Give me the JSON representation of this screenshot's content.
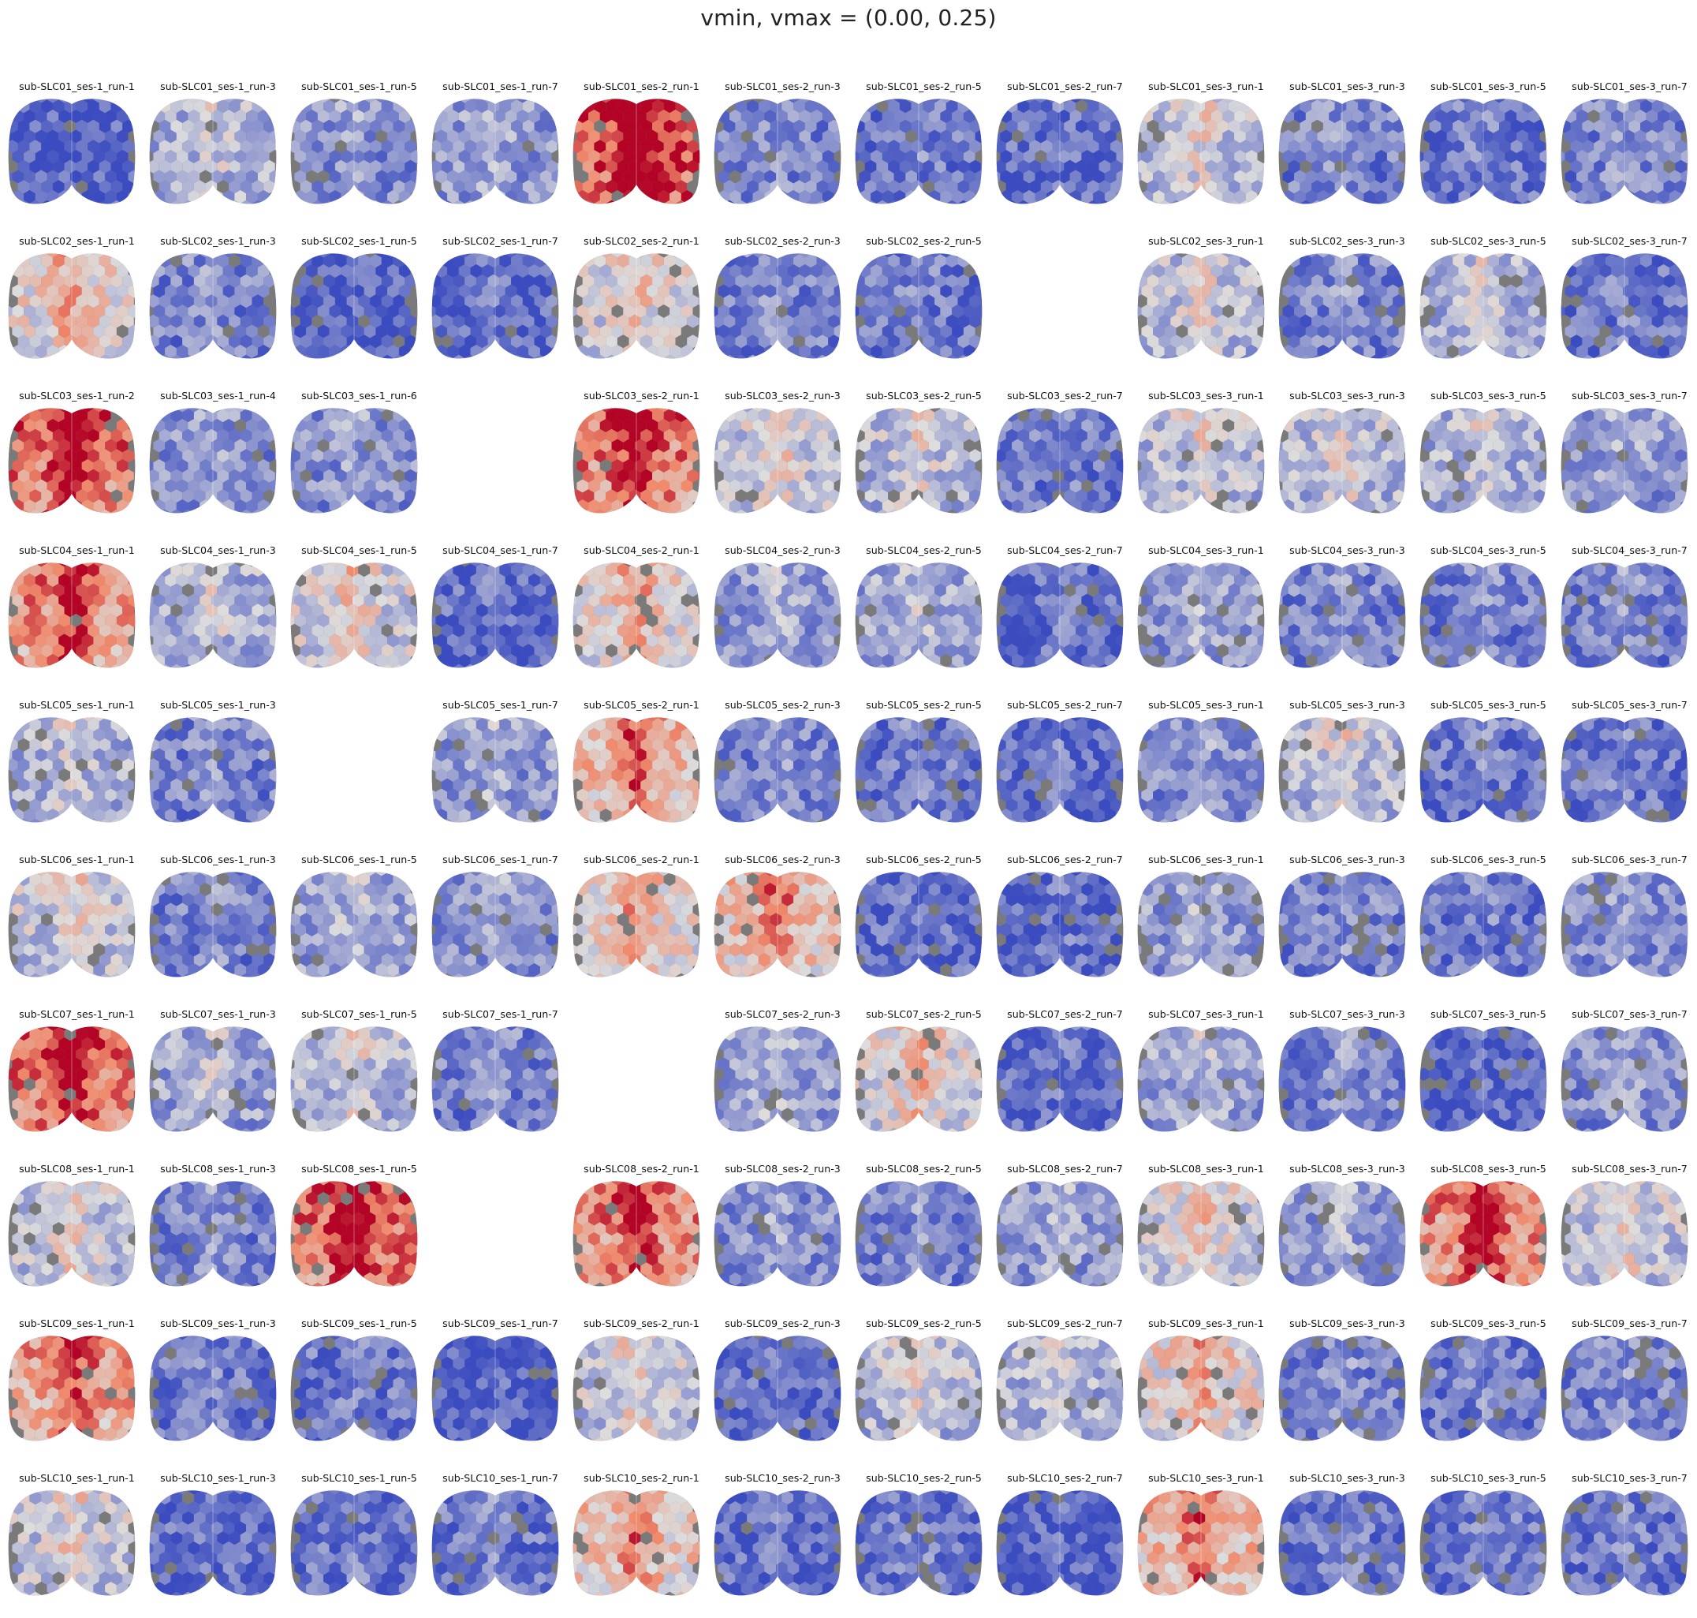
{
  "title": "vmin, vmax = (0.00, 0.25)",
  "colormap": {
    "name": "coolwarm",
    "low": "#3b4cc0",
    "mid": "#dddddd",
    "high": "#b40426",
    "missing_color": "#7a7a7a",
    "vmin": 0.0,
    "vmax": 0.25
  },
  "subjects": [
    "SLC01",
    "SLC02",
    "SLC03",
    "SLC04",
    "SLC05",
    "SLC06",
    "SLC07",
    "SLC08",
    "SLC09",
    "SLC10"
  ],
  "panels": [
    [
      "sub-SLC01_ses-1_run-1",
      "sub-SLC01_ses-1_run-3",
      "sub-SLC01_ses-1_run-5",
      "sub-SLC01_ses-1_run-7",
      "sub-SLC01_ses-2_run-1",
      "sub-SLC01_ses-2_run-3",
      "sub-SLC01_ses-2_run-5",
      "sub-SLC01_ses-2_run-7",
      "sub-SLC01_ses-3_run-1",
      "sub-SLC01_ses-3_run-3",
      "sub-SLC01_ses-3_run-5",
      "sub-SLC01_ses-3_run-7"
    ],
    [
      "sub-SLC02_ses-1_run-1",
      "sub-SLC02_ses-1_run-3",
      "sub-SLC02_ses-1_run-5",
      "sub-SLC02_ses-1_run-7",
      "sub-SLC02_ses-2_run-1",
      "sub-SLC02_ses-2_run-3",
      "sub-SLC02_ses-2_run-5",
      null,
      "sub-SLC02_ses-3_run-1",
      "sub-SLC02_ses-3_run-3",
      "sub-SLC02_ses-3_run-5",
      "sub-SLC02_ses-3_run-7"
    ],
    [
      "sub-SLC03_ses-1_run-2",
      "sub-SLC03_ses-1_run-4",
      "sub-SLC03_ses-1_run-6",
      null,
      "sub-SLC03_ses-2_run-1",
      "sub-SLC03_ses-2_run-3",
      "sub-SLC03_ses-2_run-5",
      "sub-SLC03_ses-2_run-7",
      "sub-SLC03_ses-3_run-1",
      "sub-SLC03_ses-3_run-3",
      "sub-SLC03_ses-3_run-5",
      "sub-SLC03_ses-3_run-7"
    ],
    [
      "sub-SLC04_ses-1_run-1",
      "sub-SLC04_ses-1_run-3",
      "sub-SLC04_ses-1_run-5",
      "sub-SLC04_ses-1_run-7",
      "sub-SLC04_ses-2_run-1",
      "sub-SLC04_ses-2_run-3",
      "sub-SLC04_ses-2_run-5",
      "sub-SLC04_ses-2_run-7",
      "sub-SLC04_ses-3_run-1",
      "sub-SLC04_ses-3_run-3",
      "sub-SLC04_ses-3_run-5",
      "sub-SLC04_ses-3_run-7"
    ],
    [
      "sub-SLC05_ses-1_run-1",
      "sub-SLC05_ses-1_run-3",
      null,
      "sub-SLC05_ses-1_run-7",
      "sub-SLC05_ses-2_run-1",
      "sub-SLC05_ses-2_run-3",
      "sub-SLC05_ses-2_run-5",
      "sub-SLC05_ses-2_run-7",
      "sub-SLC05_ses-3_run-1",
      "sub-SLC05_ses-3_run-3",
      "sub-SLC05_ses-3_run-5",
      "sub-SLC05_ses-3_run-7"
    ],
    [
      "sub-SLC06_ses-1_run-1",
      "sub-SLC06_ses-1_run-3",
      "sub-SLC06_ses-1_run-5",
      "sub-SLC06_ses-1_run-7",
      "sub-SLC06_ses-2_run-1",
      "sub-SLC06_ses-2_run-3",
      "sub-SLC06_ses-2_run-5",
      "sub-SLC06_ses-2_run-7",
      "sub-SLC06_ses-3_run-1",
      "sub-SLC06_ses-3_run-3",
      "sub-SLC06_ses-3_run-5",
      "sub-SLC06_ses-3_run-7"
    ],
    [
      "sub-SLC07_ses-1_run-1",
      "sub-SLC07_ses-1_run-3",
      "sub-SLC07_ses-1_run-5",
      "sub-SLC07_ses-1_run-7",
      null,
      "sub-SLC07_ses-2_run-3",
      "sub-SLC07_ses-2_run-5",
      "sub-SLC07_ses-2_run-7",
      "sub-SLC07_ses-3_run-1",
      "sub-SLC07_ses-3_run-3",
      "sub-SLC07_ses-3_run-5",
      "sub-SLC07_ses-3_run-7"
    ],
    [
      "sub-SLC08_ses-1_run-1",
      "sub-SLC08_ses-1_run-3",
      "sub-SLC08_ses-1_run-5",
      null,
      "sub-SLC08_ses-2_run-1",
      "sub-SLC08_ses-2_run-3",
      "sub-SLC08_ses-2_run-5",
      "sub-SLC08_ses-2_run-7",
      "sub-SLC08_ses-3_run-1",
      "sub-SLC08_ses-3_run-3",
      "sub-SLC08_ses-3_run-5",
      "sub-SLC08_ses-3_run-7"
    ],
    [
      "sub-SLC09_ses-1_run-1",
      "sub-SLC09_ses-1_run-3",
      "sub-SLC09_ses-1_run-5",
      "sub-SLC09_ses-1_run-7",
      "sub-SLC09_ses-2_run-1",
      "sub-SLC09_ses-2_run-3",
      "sub-SLC09_ses-2_run-5",
      "sub-SLC09_ses-2_run-7",
      "sub-SLC09_ses-3_run-1",
      "sub-SLC09_ses-3_run-3",
      "sub-SLC09_ses-3_run-5",
      "sub-SLC09_ses-3_run-7"
    ],
    [
      "sub-SLC10_ses-1_run-1",
      "sub-SLC10_ses-1_run-3",
      "sub-SLC10_ses-1_run-5",
      "sub-SLC10_ses-1_run-7",
      "sub-SLC10_ses-2_run-1",
      "sub-SLC10_ses-2_run-3",
      "sub-SLC10_ses-2_run-5",
      "sub-SLC10_ses-2_run-7",
      "sub-SLC10_ses-3_run-1",
      "sub-SLC10_ses-3_run-3",
      "sub-SLC10_ses-3_run-5",
      "sub-SLC10_ses-3_run-7"
    ]
  ],
  "approx_activation_level": [
    [
      0.02,
      0.09,
      0.06,
      0.07,
      0.24,
      0.05,
      0.04,
      0.03,
      0.1,
      0.05,
      0.04,
      0.05
    ],
    [
      0.14,
      0.05,
      0.02,
      0.03,
      0.12,
      0.05,
      0.04,
      null,
      0.1,
      0.05,
      0.09,
      0.04
    ],
    [
      0.22,
      0.06,
      0.06,
      null,
      0.21,
      0.11,
      0.1,
      0.04,
      0.1,
      0.1,
      0.09,
      0.07
    ],
    [
      0.2,
      0.09,
      0.12,
      0.03,
      0.14,
      0.07,
      0.08,
      0.03,
      0.07,
      0.05,
      0.05,
      0.05
    ],
    [
      0.09,
      0.05,
      null,
      0.07,
      0.17,
      0.05,
      0.04,
      0.03,
      0.06,
      0.1,
      0.04,
      0.04
    ],
    [
      0.11,
      0.05,
      0.08,
      0.06,
      0.14,
      0.16,
      0.03,
      0.03,
      0.07,
      0.05,
      0.04,
      0.06
    ],
    [
      0.22,
      0.08,
      0.1,
      0.05,
      null,
      0.08,
      0.13,
      0.03,
      0.08,
      0.05,
      0.02,
      0.06
    ],
    [
      0.11,
      0.05,
      0.22,
      null,
      0.2,
      0.06,
      0.05,
      0.07,
      0.12,
      0.07,
      0.2,
      0.11
    ],
    [
      0.19,
      0.04,
      0.04,
      0.02,
      0.11,
      0.03,
      0.1,
      0.09,
      0.14,
      0.05,
      0.04,
      0.05
    ],
    [
      0.11,
      0.03,
      0.04,
      0.04,
      0.16,
      0.03,
      0.04,
      0.02,
      0.17,
      0.04,
      0.04,
      0.04
    ]
  ]
}
